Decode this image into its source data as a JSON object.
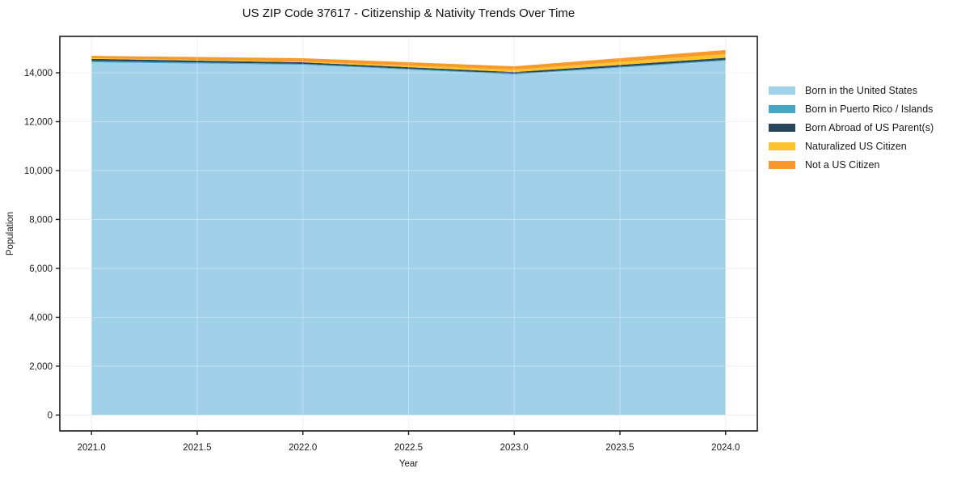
{
  "figure": {
    "title": "US ZIP Code 37617 - Citizenship & Nativity Trends Over Time"
  },
  "chart_data": {
    "type": "area",
    "stacked": true,
    "title": "US ZIP Code 37617 - Citizenship & Nativity Trends Over Time",
    "xlabel": "Year",
    "ylabel": "Population",
    "x": [
      2021,
      2022,
      2023,
      2024
    ],
    "series": [
      {
        "name": "Born in the United States",
        "color": "#a0d1e8",
        "values": [
          14430,
          14330,
          13930,
          14495
        ]
      },
      {
        "name": "Born in Puerto Rico / Islands",
        "color": "#45a7c4",
        "values": [
          55,
          35,
          35,
          35
        ]
      },
      {
        "name": "Born Abroad of US Parent(s)",
        "color": "#29475a",
        "values": [
          85,
          65,
          65,
          85
        ]
      },
      {
        "name": "Naturalized US Citizen",
        "color": "#fcc32f",
        "values": [
          25,
          35,
          100,
          150
        ]
      },
      {
        "name": "Not a US Citizen",
        "color": "#f7992b",
        "values": [
          100,
          130,
          135,
          165
        ]
      }
    ],
    "xlim": [
      2020.85,
      2024.15
    ],
    "ylim": [
      -650,
      15490
    ],
    "xticks": {
      "values": [
        2021.0,
        2021.5,
        2022.0,
        2022.5,
        2023.0,
        2023.5,
        2024.0
      ],
      "labels": [
        "2021.0",
        "2021.5",
        "2022.0",
        "2022.5",
        "2023.0",
        "2023.5",
        "2024.0"
      ]
    },
    "yticks": {
      "values": [
        0,
        2000,
        4000,
        6000,
        8000,
        10000,
        12000,
        14000
      ],
      "labels": [
        "0",
        "2,000",
        "4,000",
        "6,000",
        "8,000",
        "10,000",
        "12,000",
        "14,000"
      ]
    },
    "grid": true,
    "legend_position": "right",
    "colors": {
      "grid": "#e9e9e9",
      "spine": "#1a1a1a",
      "tick_text": "#1a1a1a",
      "background": "#ffffff"
    }
  }
}
